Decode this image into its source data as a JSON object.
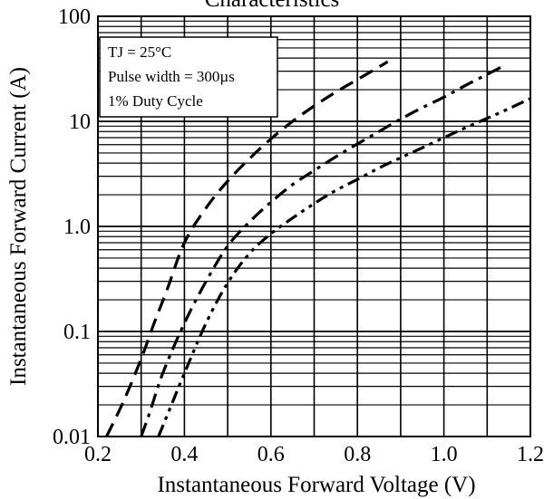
{
  "chart_data": {
    "type": "line",
    "title": "Characteristics",
    "xlabel": "Instantaneous Forward Voltage (V)",
    "ylabel": "Instantaneous Forward Current (A)",
    "xlim": [
      0.2,
      1.2
    ],
    "ylim": [
      0.01,
      100
    ],
    "y_scale": "log",
    "grid": true,
    "x_ticks": [
      0.2,
      0.4,
      0.6,
      0.8,
      1.0,
      1.2
    ],
    "x_tick_labels": [
      "0.2",
      "0.4",
      "0.6",
      "0.8",
      "1.0",
      "1.2"
    ],
    "y_ticks": [
      0.01,
      0.1,
      1,
      10,
      100
    ],
    "y_tick_labels": [
      "0.01",
      "0.1",
      "1.0",
      "10",
      "100"
    ],
    "annotations": [
      "TJ = 25°C",
      "Pulse width = 300µs",
      "1% Duty Cycle"
    ],
    "legend_placement": "top-left",
    "series": [
      {
        "style": "dashed",
        "color": "#000000",
        "x": [
          0.22,
          0.26,
          0.3,
          0.33,
          0.36,
          0.4,
          0.45,
          0.5,
          0.55,
          0.6,
          0.65,
          0.7,
          0.75,
          0.8,
          0.85,
          0.87
        ],
        "y": [
          0.01,
          0.022,
          0.055,
          0.12,
          0.25,
          0.7,
          1.5,
          2.7,
          4.4,
          6.8,
          10,
          14,
          19,
          25,
          33,
          37
        ]
      },
      {
        "style": "dash-dot",
        "color": "#000000",
        "x": [
          0.3,
          0.32,
          0.35,
          0.4,
          0.45,
          0.5,
          0.55,
          0.6,
          0.65,
          0.7,
          0.75,
          0.8,
          0.85,
          0.9,
          0.95,
          1.0,
          1.05,
          1.1,
          1.14
        ],
        "y": [
          0.01,
          0.017,
          0.04,
          0.12,
          0.3,
          0.65,
          1.1,
          1.7,
          2.5,
          3.4,
          4.6,
          6.1,
          8,
          10.5,
          13.5,
          17,
          22,
          28,
          34
        ]
      },
      {
        "style": "dash-dot-dot",
        "color": "#000000",
        "x": [
          0.34,
          0.37,
          0.4,
          0.45,
          0.5,
          0.55,
          0.6,
          0.65,
          0.7,
          0.75,
          0.8,
          0.85,
          0.9,
          0.95,
          1.0,
          1.05,
          1.1,
          1.15,
          1.2
        ],
        "y": [
          0.01,
          0.02,
          0.04,
          0.12,
          0.29,
          0.55,
          0.85,
          1.2,
          1.65,
          2.2,
          2.8,
          3.6,
          4.5,
          5.6,
          7,
          8.7,
          10.7,
          13.2,
          16.5
        ]
      }
    ]
  }
}
